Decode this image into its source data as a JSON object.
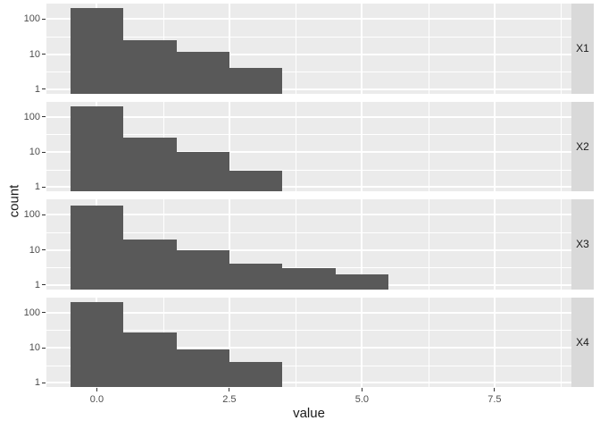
{
  "chart_data": {
    "type": "bar",
    "subtype": "faceted-histogram",
    "title": "",
    "xlabel": "value",
    "ylabel": "count",
    "x_ticks": [
      0.0,
      2.5,
      5.0,
      7.5
    ],
    "x_tick_labels": [
      "0.0",
      "2.5",
      "5.0",
      "7.5"
    ],
    "x_minor_breaks": [
      1.25,
      3.75,
      6.25,
      8.75
    ],
    "xlim": [
      -0.95,
      8.95
    ],
    "y_scale": "log10",
    "y_ticks": [
      1,
      10,
      100
    ],
    "y_tick_labels": [
      "1",
      "10",
      "100"
    ],
    "y_minor_breaks": [
      3.162,
      31.62
    ],
    "ylim_log10": [
      -0.116,
      2.44
    ],
    "binwidth": 1,
    "grid": true,
    "legend": "none",
    "facets": [
      {
        "label": "X1",
        "bin_centers": [
          0,
          1,
          2,
          3
        ],
        "counts": [
          210,
          25,
          12,
          4
        ]
      },
      {
        "label": "X2",
        "bin_centers": [
          0,
          1,
          2,
          3
        ],
        "counts": [
          205,
          26,
          10,
          3
        ]
      },
      {
        "label": "X3",
        "bin_centers": [
          0,
          1,
          2,
          3,
          4,
          5
        ],
        "counts": [
          185,
          20,
          10,
          4,
          3,
          2
        ]
      },
      {
        "label": "X4",
        "bin_centers": [
          0,
          1,
          2,
          3
        ],
        "counts": [
          195,
          28,
          9,
          4
        ]
      }
    ]
  },
  "colors": {
    "bar_fill": "#595959",
    "panel_background": "#EBEBEB",
    "strip_background": "#D9D9D9",
    "grid_major": "#FFFFFF",
    "grid_minor": "#FFFFFF",
    "axis_text": "#4D4D4D",
    "title_text": "#1A1A1A",
    "tick_mark": "#333333",
    "figure_background": "#FFFFFF"
  }
}
